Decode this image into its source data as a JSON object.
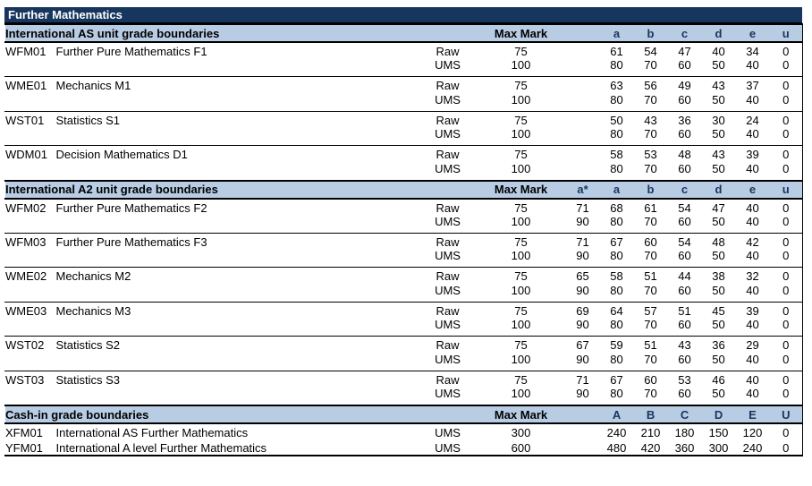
{
  "page_title": "Further Mathematics",
  "colors": {
    "title_bar_bg": "#17365d",
    "title_bar_text": "#ffffff",
    "section_bar_bg": "#b8cce4",
    "grade_letter_color": "#17365d",
    "body_text": "#000000",
    "border": "#000000"
  },
  "sections": [
    {
      "heading": "International AS unit grade boundaries",
      "max_mark_label": "Max Mark",
      "grade_headers": [
        "a",
        "b",
        "c",
        "d",
        "e",
        "u"
      ],
      "separators": true,
      "units": [
        {
          "code": "WFM01",
          "name": "Further Pure Mathematics F1",
          "rows": [
            {
              "type": "Raw",
              "max_mark": "75",
              "values": [
                "61",
                "54",
                "47",
                "40",
                "34",
                "0"
              ]
            },
            {
              "type": "UMS",
              "max_mark": "100",
              "values": [
                "80",
                "70",
                "60",
                "50",
                "40",
                "0"
              ]
            }
          ]
        },
        {
          "code": "WME01",
          "name": "Mechanics M1",
          "rows": [
            {
              "type": "Raw",
              "max_mark": "75",
              "values": [
                "63",
                "56",
                "49",
                "43",
                "37",
                "0"
              ]
            },
            {
              "type": "UMS",
              "max_mark": "100",
              "values": [
                "80",
                "70",
                "60",
                "50",
                "40",
                "0"
              ]
            }
          ]
        },
        {
          "code": "WST01",
          "name": "Statistics S1",
          "rows": [
            {
              "type": "Raw",
              "max_mark": "75",
              "values": [
                "50",
                "43",
                "36",
                "30",
                "24",
                "0"
              ]
            },
            {
              "type": "UMS",
              "max_mark": "100",
              "values": [
                "80",
                "70",
                "60",
                "50",
                "40",
                "0"
              ]
            }
          ]
        },
        {
          "code": "WDM01",
          "name": "Decision Mathematics D1",
          "rows": [
            {
              "type": "Raw",
              "max_mark": "75",
              "values": [
                "58",
                "53",
                "48",
                "43",
                "39",
                "0"
              ]
            },
            {
              "type": "UMS",
              "max_mark": "100",
              "values": [
                "80",
                "70",
                "60",
                "50",
                "40",
                "0"
              ]
            }
          ]
        }
      ]
    },
    {
      "heading": "International A2 unit grade boundaries",
      "max_mark_label": "Max Mark",
      "grade_headers": [
        "a*",
        "a",
        "b",
        "c",
        "d",
        "e",
        "u"
      ],
      "separators": true,
      "units": [
        {
          "code": "WFM02",
          "name": "Further Pure Mathematics F2",
          "rows": [
            {
              "type": "Raw",
              "max_mark": "75",
              "values": [
                "71",
                "68",
                "61",
                "54",
                "47",
                "40",
                "0"
              ]
            },
            {
              "type": "UMS",
              "max_mark": "100",
              "values": [
                "90",
                "80",
                "70",
                "60",
                "50",
                "40",
                "0"
              ]
            }
          ]
        },
        {
          "code": "WFM03",
          "name": "Further Pure Mathematics F3",
          "rows": [
            {
              "type": "Raw",
              "max_mark": "75",
              "values": [
                "71",
                "67",
                "60",
                "54",
                "48",
                "42",
                "0"
              ]
            },
            {
              "type": "UMS",
              "max_mark": "100",
              "values": [
                "90",
                "80",
                "70",
                "60",
                "50",
                "40",
                "0"
              ]
            }
          ]
        },
        {
          "code": "WME02",
          "name": "Mechanics M2",
          "rows": [
            {
              "type": "Raw",
              "max_mark": "75",
              "values": [
                "65",
                "58",
                "51",
                "44",
                "38",
                "32",
                "0"
              ]
            },
            {
              "type": "UMS",
              "max_mark": "100",
              "values": [
                "90",
                "80",
                "70",
                "60",
                "50",
                "40",
                "0"
              ]
            }
          ]
        },
        {
          "code": "WME03",
          "name": "Mechanics M3",
          "rows": [
            {
              "type": "Raw",
              "max_mark": "75",
              "values": [
                "69",
                "64",
                "57",
                "51",
                "45",
                "39",
                "0"
              ]
            },
            {
              "type": "UMS",
              "max_mark": "100",
              "values": [
                "90",
                "80",
                "70",
                "60",
                "50",
                "40",
                "0"
              ]
            }
          ]
        },
        {
          "code": "WST02",
          "name": "Statistics S2",
          "rows": [
            {
              "type": "Raw",
              "max_mark": "75",
              "values": [
                "67",
                "59",
                "51",
                "43",
                "36",
                "29",
                "0"
              ]
            },
            {
              "type": "UMS",
              "max_mark": "100",
              "values": [
                "90",
                "80",
                "70",
                "60",
                "50",
                "40",
                "0"
              ]
            }
          ]
        },
        {
          "code": "WST03",
          "name": "Statistics S3",
          "rows": [
            {
              "type": "Raw",
              "max_mark": "75",
              "values": [
                "71",
                "67",
                "60",
                "53",
                "46",
                "40",
                "0"
              ]
            },
            {
              "type": "UMS",
              "max_mark": "100",
              "values": [
                "90",
                "80",
                "70",
                "60",
                "50",
                "40",
                "0"
              ]
            }
          ]
        }
      ]
    },
    {
      "heading": "Cash-in grade boundaries",
      "max_mark_label": "Max Mark",
      "grade_headers": [
        "A",
        "B",
        "C",
        "D",
        "E",
        "U"
      ],
      "separators": false,
      "units": [
        {
          "code": "XFM01",
          "name": "International AS Further Mathematics",
          "rows": [
            {
              "type": "UMS",
              "max_mark": "300",
              "values": [
                "240",
                "210",
                "180",
                "150",
                "120",
                "0"
              ]
            }
          ]
        },
        {
          "code": "YFM01",
          "name": "International A level Further Mathematics",
          "rows": [
            {
              "type": "UMS",
              "max_mark": "600",
              "values": [
                "480",
                "420",
                "360",
                "300",
                "240",
                "0"
              ]
            }
          ]
        }
      ]
    }
  ]
}
